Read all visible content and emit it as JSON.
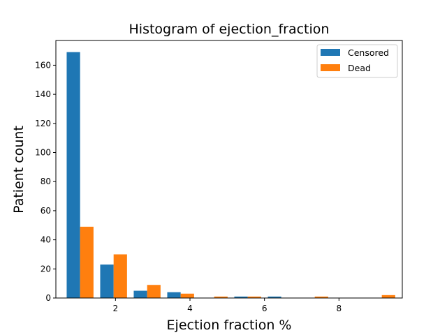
{
  "chart_data": {
    "type": "bar",
    "title": "Histogram of ejection_fraction",
    "xlabel": "Ejection fraction %",
    "ylabel": "Patient count",
    "xlim": [
      0.4,
      9.7
    ],
    "ylim": [
      0,
      177
    ],
    "xticks": [
      2,
      4,
      6,
      8
    ],
    "yticks": [
      0,
      20,
      40,
      60,
      80,
      100,
      120,
      140,
      160
    ],
    "grid": false,
    "legend_position": "top-right",
    "bin_edges": [
      0.6,
      1.5,
      2.4,
      3.3,
      4.2,
      5.1,
      6.0,
      6.9,
      7.8,
      8.7,
      9.6
    ],
    "series": [
      {
        "name": "Censored",
        "color": "#1f77b4",
        "values": [
          169,
          23,
          5,
          4,
          0,
          1,
          1,
          0,
          0,
          0
        ]
      },
      {
        "name": "Dead",
        "color": "#ff7f0e",
        "values": [
          49,
          30,
          9,
          3,
          1,
          1,
          0,
          1,
          0,
          2
        ]
      }
    ]
  }
}
